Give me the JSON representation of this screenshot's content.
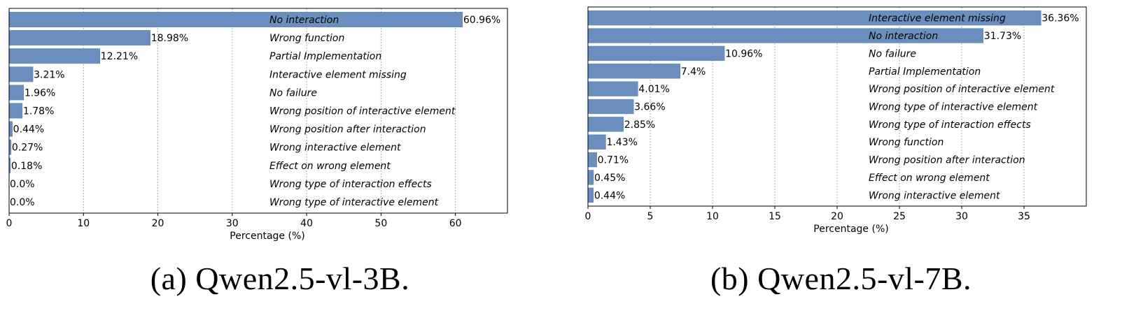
{
  "chart_data": [
    {
      "type": "bar",
      "orientation": "horizontal",
      "caption": "(a) Qwen2.5-vl-3B.",
      "xlabel": "Percentage (%)",
      "xlim": [
        0,
        67
      ],
      "xticks": [
        0,
        10,
        20,
        30,
        40,
        50,
        60
      ],
      "grid": "x-dotted",
      "bar_color": "#6a8fbf",
      "categories": [
        "No interaction",
        "Wrong function",
        "Partial Implementation",
        "Interactive element missing",
        "No failure",
        "Wrong position of interactive element",
        "Wrong position after interaction",
        "Wrong interactive element",
        "Effect on wrong element",
        "Wrong type of interaction effects",
        "Wrong type of interactive element"
      ],
      "values": [
        60.96,
        18.98,
        12.21,
        3.21,
        1.96,
        1.78,
        0.44,
        0.27,
        0.18,
        0.0,
        0.0
      ],
      "value_labels": [
        "60.96%",
        "18.98%",
        "12.21%",
        "3.21%",
        "1.96%",
        "1.78%",
        "0.44%",
        "0.27%",
        "0.18%",
        "0.0%",
        "0.0%"
      ]
    },
    {
      "type": "bar",
      "orientation": "horizontal",
      "caption": "(b) Qwen2.5-vl-7B.",
      "xlabel": "Percentage (%)",
      "xlim": [
        0,
        40
      ],
      "xticks": [
        0,
        5,
        10,
        15,
        20,
        25,
        30,
        35
      ],
      "grid": "x-dotted",
      "bar_color": "#6a8fbf",
      "categories": [
        "Interactive element missing",
        "No interaction",
        "No failure",
        "Partial Implementation",
        "Wrong position of interactive element",
        "Wrong type of interactive element",
        "Wrong type of interaction effects",
        "Wrong function",
        "Wrong position after interaction",
        "Effect on wrong element",
        "Wrong interactive element"
      ],
      "values": [
        36.36,
        31.73,
        10.96,
        7.4,
        4.01,
        3.66,
        2.85,
        1.43,
        0.71,
        0.45,
        0.44
      ],
      "value_labels": [
        "36.36%",
        "31.73%",
        "10.96%",
        "7.4%",
        "4.01%",
        "3.66%",
        "2.85%",
        "1.43%",
        "0.71%",
        "0.45%",
        "0.44%"
      ]
    }
  ]
}
